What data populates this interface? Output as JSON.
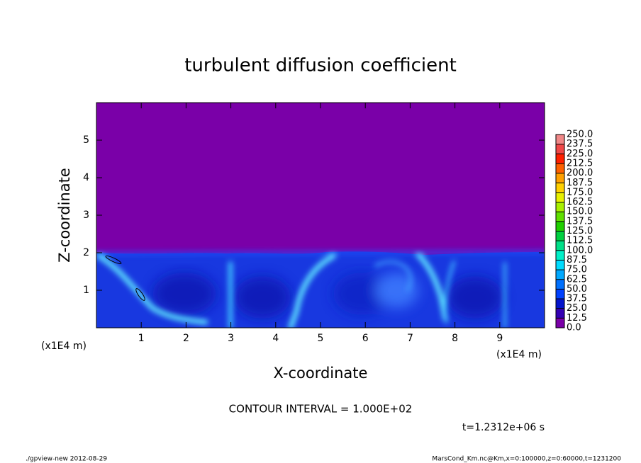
{
  "chart_data": {
    "type": "contour",
    "title": "turbulent diffusion coefficient",
    "xlabel": "X-coordinate",
    "ylabel": "Z-coordinate",
    "xunit": "(x1E4 m)",
    "yunit": "(x1E4 m)",
    "xlim": [
      0,
      10
    ],
    "ylim": [
      0,
      6
    ],
    "xticks": [
      1,
      2,
      3,
      4,
      5,
      6,
      7,
      8,
      9
    ],
    "yticks": [
      1,
      2,
      3,
      4,
      5
    ],
    "colorbar": {
      "levels": [
        {
          "value": 0,
          "label": "0.0"
        },
        12.5,
        {
          "value": 25,
          "label": "25.0"
        },
        37.5,
        {
          "value": 50,
          "label": "50.0"
        },
        62.5,
        {
          "value": 75,
          "label": "75.0"
        },
        87.5,
        {
          "value": 100,
          "label": "100.0"
        },
        112.5,
        {
          "value": 125,
          "label": "125.0"
        },
        137.5,
        {
          "value": 150,
          "label": "150.0"
        },
        162.5,
        {
          "value": 175,
          "label": "175.0"
        },
        187.5,
        {
          "value": 200,
          "label": "200.0"
        },
        212.5,
        {
          "value": 225,
          "label": "225.0"
        },
        237.5,
        {
          "value": 250,
          "label": "250.0"
        }
      ],
      "colors": [
        "#7a00a8",
        "#3400b4",
        "#0414cc",
        "#0040ff",
        "#0070ff",
        "#00a8ff",
        "#00dcff",
        "#00f0c8",
        "#00e088",
        "#00d040",
        "#20d000",
        "#60e000",
        "#a8f000",
        "#e8f000",
        "#ffd000",
        "#ffa000",
        "#ff6000",
        "#ff2000",
        "#f04848",
        "#f08888"
      ]
    },
    "contour_interval": "CONTOUR INTERVAL = 1.000E+02",
    "time": "t=1.2312e+06 s",
    "footer_left": "./gpview-new  2012-08-29",
    "footer_right": "MarsCond_Km.nc@Km,x=0:100000,z=0:60000,t=1231200"
  }
}
